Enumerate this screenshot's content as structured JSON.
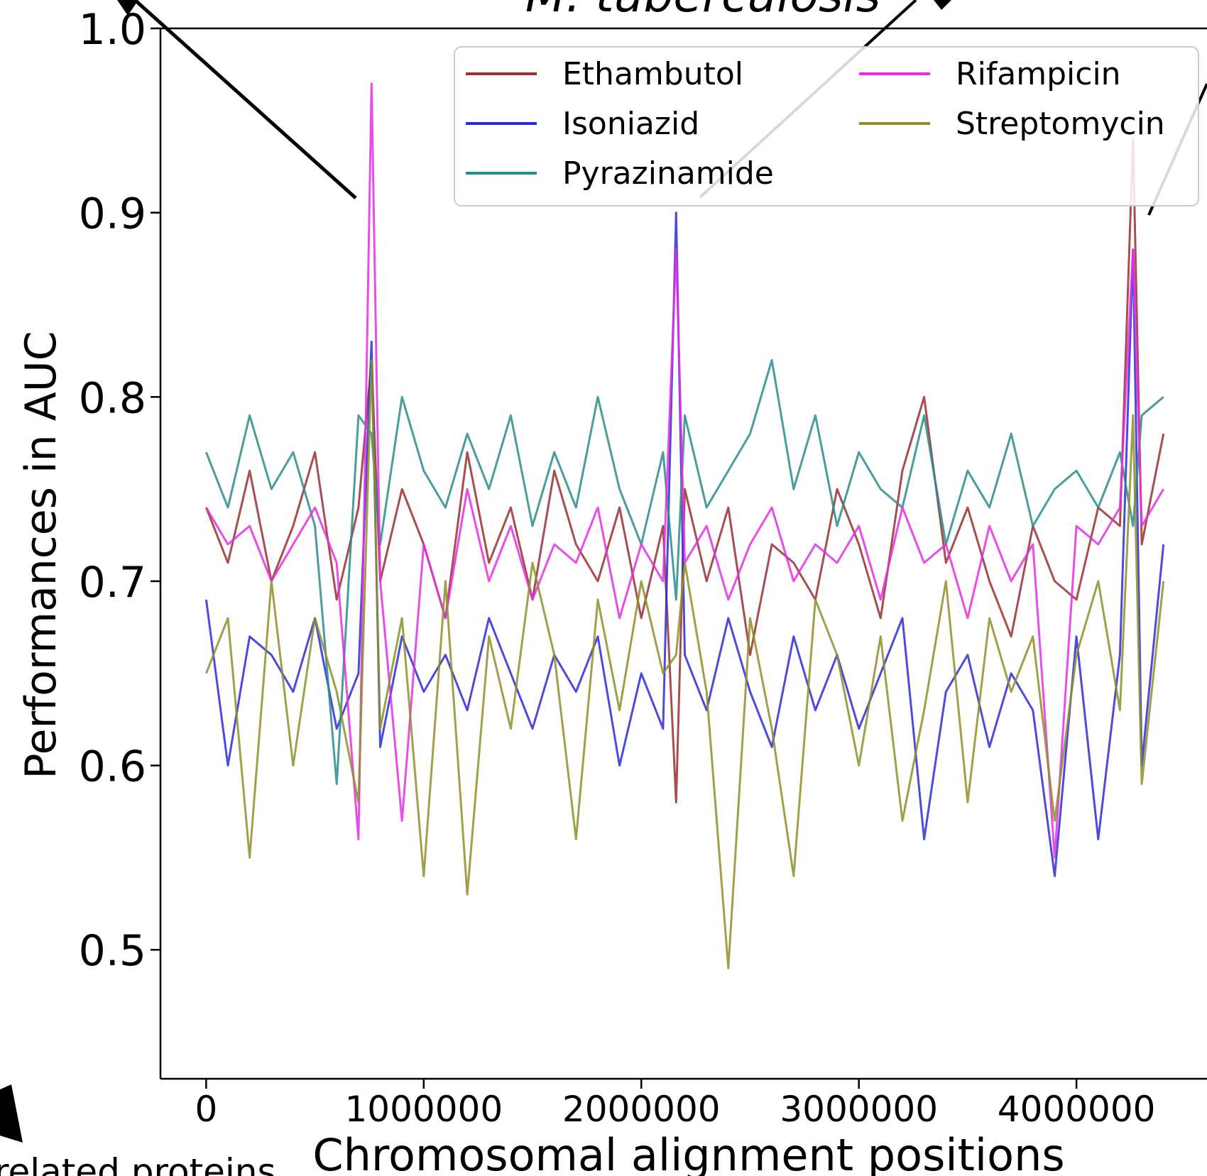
{
  "chart_data": {
    "type": "line",
    "title": "M. tuberculosis",
    "xlabel": "Chromosomal alignment positions",
    "ylabel": "Performances in AUC",
    "xlim": [
      -210000,
      4600000
    ],
    "ylim": [
      0.43,
      1.0
    ],
    "xticks": [
      0,
      1000000,
      2000000,
      3000000,
      4000000
    ],
    "xtick_labels": [
      "0",
      "1000000",
      "2000000",
      "3000000",
      "4000000"
    ],
    "yticks": [
      0.5,
      0.6,
      0.7,
      0.8,
      0.9,
      1.0
    ],
    "ytick_labels": [
      "0.5",
      "0.6",
      "0.7",
      "0.8",
      "0.9",
      "1.0"
    ],
    "grid": false,
    "legend_position": "top-right",
    "footer_fragment": "related proteins",
    "series": [
      {
        "name": "Ethambutol",
        "color": "#9a2f2f",
        "x": [
          0,
          100000,
          200000,
          300000,
          400000,
          500000,
          600000,
          700000,
          760000,
          800000,
          900000,
          1000000,
          1100000,
          1200000,
          1300000,
          1400000,
          1500000,
          1600000,
          1700000,
          1800000,
          1900000,
          2000000,
          2100000,
          2160000,
          2200000,
          2300000,
          2400000,
          2500000,
          2600000,
          2700000,
          2800000,
          2900000,
          3000000,
          3100000,
          3200000,
          3300000,
          3400000,
          3500000,
          3600000,
          3700000,
          3800000,
          3900000,
          4000000,
          4100000,
          4200000,
          4260000,
          4300000,
          4400000
        ],
        "y": [
          0.74,
          0.71,
          0.76,
          0.7,
          0.73,
          0.77,
          0.69,
          0.74,
          0.82,
          0.7,
          0.75,
          0.72,
          0.68,
          0.77,
          0.71,
          0.74,
          0.69,
          0.76,
          0.72,
          0.7,
          0.74,
          0.68,
          0.73,
          0.58,
          0.75,
          0.7,
          0.74,
          0.66,
          0.72,
          0.71,
          0.69,
          0.75,
          0.72,
          0.68,
          0.76,
          0.8,
          0.71,
          0.74,
          0.7,
          0.67,
          0.73,
          0.7,
          0.69,
          0.74,
          0.73,
          0.94,
          0.72,
          0.78
        ]
      },
      {
        "name": "Isoniazid",
        "color": "#2b2bd6",
        "x": [
          0,
          100000,
          200000,
          300000,
          400000,
          500000,
          600000,
          700000,
          760000,
          800000,
          900000,
          1000000,
          1100000,
          1200000,
          1300000,
          1400000,
          1500000,
          1600000,
          1700000,
          1800000,
          1900000,
          2000000,
          2100000,
          2160000,
          2200000,
          2300000,
          2400000,
          2500000,
          2600000,
          2700000,
          2800000,
          2900000,
          3000000,
          3100000,
          3200000,
          3300000,
          3400000,
          3500000,
          3600000,
          3700000,
          3800000,
          3900000,
          4000000,
          4100000,
          4200000,
          4260000,
          4300000,
          4400000
        ],
        "y": [
          0.69,
          0.6,
          0.67,
          0.66,
          0.64,
          0.68,
          0.62,
          0.65,
          0.83,
          0.61,
          0.67,
          0.64,
          0.66,
          0.63,
          0.68,
          0.65,
          0.62,
          0.66,
          0.64,
          0.67,
          0.6,
          0.65,
          0.62,
          0.9,
          0.66,
          0.63,
          0.68,
          0.64,
          0.61,
          0.67,
          0.63,
          0.66,
          0.62,
          0.65,
          0.68,
          0.56,
          0.64,
          0.66,
          0.61,
          0.65,
          0.63,
          0.54,
          0.67,
          0.56,
          0.66,
          0.88,
          0.6,
          0.72
        ]
      },
      {
        "name": "Pyrazinamide",
        "color": "#2a8c8c",
        "x": [
          0,
          100000,
          200000,
          300000,
          400000,
          500000,
          600000,
          700000,
          760000,
          800000,
          900000,
          1000000,
          1100000,
          1200000,
          1300000,
          1400000,
          1500000,
          1600000,
          1700000,
          1800000,
          1900000,
          2000000,
          2100000,
          2160000,
          2200000,
          2300000,
          2400000,
          2500000,
          2600000,
          2700000,
          2800000,
          2900000,
          3000000,
          3100000,
          3200000,
          3300000,
          3400000,
          3500000,
          3600000,
          3700000,
          3800000,
          3900000,
          4000000,
          4100000,
          4200000,
          4260000,
          4300000,
          4400000
        ],
        "y": [
          0.77,
          0.74,
          0.79,
          0.75,
          0.77,
          0.73,
          0.59,
          0.79,
          0.78,
          0.72,
          0.8,
          0.76,
          0.74,
          0.78,
          0.75,
          0.79,
          0.73,
          0.77,
          0.74,
          0.8,
          0.75,
          0.72,
          0.77,
          0.69,
          0.79,
          0.74,
          0.76,
          0.78,
          0.82,
          0.75,
          0.79,
          0.73,
          0.77,
          0.75,
          0.74,
          0.79,
          0.72,
          0.76,
          0.74,
          0.78,
          0.73,
          0.75,
          0.76,
          0.74,
          0.77,
          0.73,
          0.79,
          0.8
        ]
      },
      {
        "name": "Rifampicin",
        "color": "#e52ee5",
        "x": [
          0,
          100000,
          200000,
          300000,
          400000,
          500000,
          600000,
          700000,
          760000,
          800000,
          900000,
          1000000,
          1100000,
          1200000,
          1300000,
          1400000,
          1500000,
          1600000,
          1700000,
          1800000,
          1900000,
          2000000,
          2100000,
          2160000,
          2200000,
          2300000,
          2400000,
          2500000,
          2600000,
          2700000,
          2800000,
          2900000,
          3000000,
          3100000,
          3200000,
          3300000,
          3400000,
          3500000,
          3600000,
          3700000,
          3800000,
          3900000,
          4000000,
          4100000,
          4200000,
          4260000,
          4300000,
          4400000
        ],
        "y": [
          0.74,
          0.72,
          0.73,
          0.7,
          0.72,
          0.74,
          0.71,
          0.56,
          0.97,
          0.7,
          0.57,
          0.72,
          0.68,
          0.75,
          0.7,
          0.73,
          0.69,
          0.72,
          0.71,
          0.74,
          0.68,
          0.72,
          0.7,
          0.88,
          0.71,
          0.73,
          0.69,
          0.72,
          0.74,
          0.7,
          0.72,
          0.71,
          0.73,
          0.69,
          0.74,
          0.71,
          0.72,
          0.68,
          0.73,
          0.7,
          0.72,
          0.55,
          0.73,
          0.72,
          0.74,
          0.88,
          0.73,
          0.75
        ]
      },
      {
        "name": "Streptomycin",
        "color": "#8f8f2a",
        "x": [
          0,
          100000,
          200000,
          300000,
          400000,
          500000,
          600000,
          700000,
          760000,
          800000,
          900000,
          1000000,
          1100000,
          1200000,
          1300000,
          1400000,
          1500000,
          1600000,
          1700000,
          1800000,
          1900000,
          2000000,
          2100000,
          2160000,
          2200000,
          2300000,
          2400000,
          2500000,
          2600000,
          2700000,
          2800000,
          2900000,
          3000000,
          3100000,
          3200000,
          3300000,
          3400000,
          3500000,
          3600000,
          3700000,
          3800000,
          3900000,
          4000000,
          4100000,
          4200000,
          4260000,
          4300000,
          4400000
        ],
        "y": [
          0.65,
          0.68,
          0.55,
          0.7,
          0.6,
          0.68,
          0.64,
          0.58,
          0.82,
          0.62,
          0.68,
          0.54,
          0.7,
          0.53,
          0.67,
          0.62,
          0.71,
          0.66,
          0.56,
          0.69,
          0.63,
          0.7,
          0.65,
          0.66,
          0.71,
          0.64,
          0.49,
          0.68,
          0.62,
          0.54,
          0.69,
          0.66,
          0.6,
          0.67,
          0.57,
          0.63,
          0.7,
          0.58,
          0.68,
          0.64,
          0.67,
          0.57,
          0.66,
          0.7,
          0.63,
          0.79,
          0.59,
          0.7
        ]
      }
    ]
  }
}
